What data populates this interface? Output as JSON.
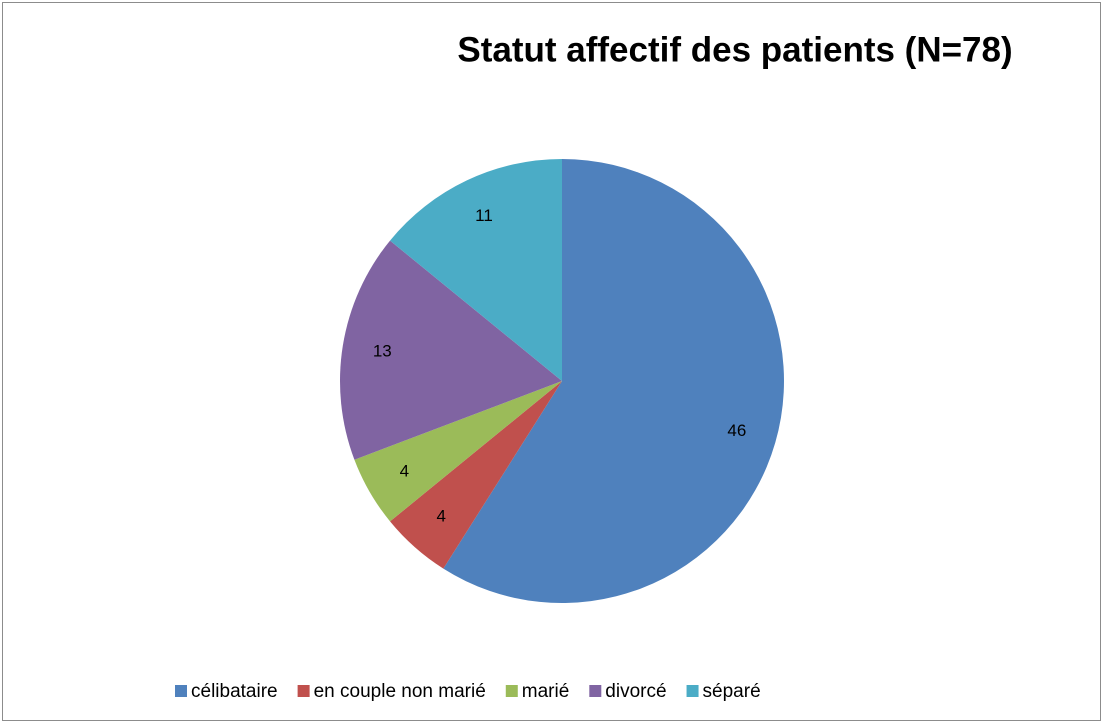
{
  "chart_data": {
    "type": "pie",
    "title": "Statut affectif des patients (N=78)",
    "categories": [
      "célibataire",
      "en couple non marié",
      "marié",
      "divorcé",
      "séparé"
    ],
    "values": [
      46,
      4,
      4,
      13,
      11
    ],
    "colors": [
      "#4f81bd",
      "#c0504d",
      "#9bbb59",
      "#8064a2",
      "#4bacc6"
    ],
    "legend": "bottom"
  }
}
